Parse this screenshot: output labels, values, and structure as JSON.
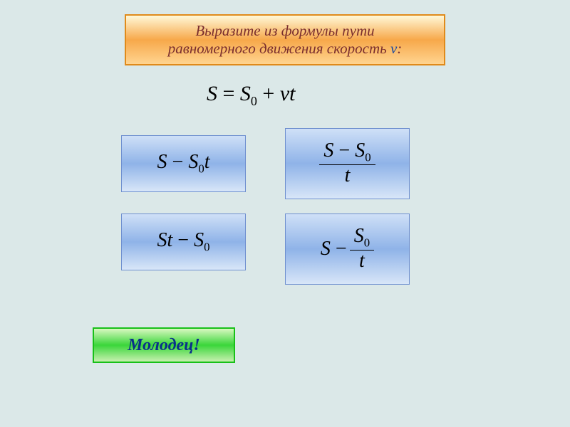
{
  "slide": {
    "background_color": "#dbe8e8"
  },
  "header": {
    "line1": "Выразите из формулы пути",
    "line2_prefix": "равномерного движения скорость ",
    "line2_variable": "v",
    "line2_suffix": ":",
    "text_color": "#7a2e2e",
    "variable_color": "#1a4aa0",
    "gradient_top": "#fff8d8",
    "gradient_mid": "#f7a84a",
    "gradient_bot": "#ffd490",
    "border_color": "#e08a1a",
    "font_size_pt": 16
  },
  "formula": {
    "text": "S = S₀ + vt",
    "color": "#000000",
    "font_size_pt": 22
  },
  "options": {
    "gradient_top": "#cfe0f7",
    "gradient_mid": "#8fb3e8",
    "gradient_bot": "#d8e6f8",
    "border_color": "#6e8fcf",
    "text_color": "#000000",
    "font_size_pt": 20,
    "a": {
      "type": "plain",
      "expr": "S − S₀t"
    },
    "b": {
      "type": "fraction",
      "num": "S − S₀",
      "den": "t"
    },
    "c": {
      "type": "plain",
      "expr": "St − S₀"
    },
    "d": {
      "type": "minus_fraction",
      "lead": "S − ",
      "num": "S₀",
      "den": "t"
    }
  },
  "feedback": {
    "text": "Молодец!",
    "text_color": "#0a2f8a",
    "gradient_top": "#d8f8c0",
    "gradient_mid": "#3ad63a",
    "gradient_bot": "#c8f0b0",
    "border_color": "#18c018",
    "font_size_pt": 18
  }
}
